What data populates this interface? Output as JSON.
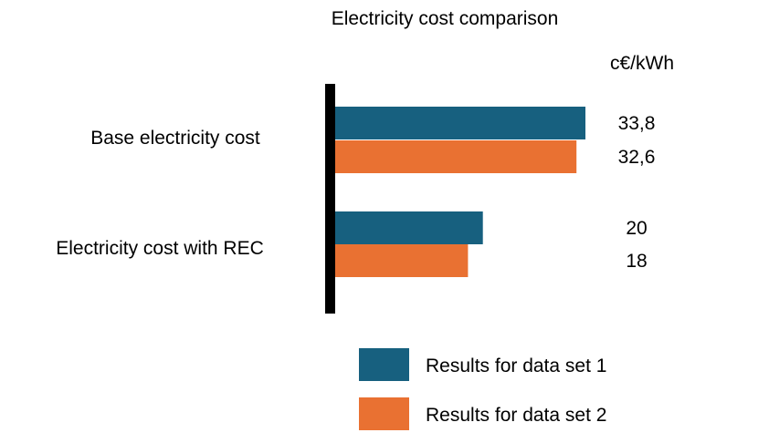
{
  "chart_data": {
    "type": "bar",
    "orientation": "horizontal",
    "title": "Electricity cost comparison",
    "unit": "c€/kWh",
    "categories": [
      "Base electricity cost",
      "Electricity cost with REC"
    ],
    "series": [
      {
        "name": "Results for data set 1",
        "values": [
          33.8,
          20
        ],
        "labels": [
          "33,8",
          "20"
        ],
        "color": "#17607f"
      },
      {
        "name": "Results for data set 2",
        "values": [
          32.6,
          18
        ],
        "labels": [
          "32,6",
          "18"
        ],
        "color": "#e97132"
      }
    ],
    "xlim": [
      0,
      40
    ],
    "grid": false,
    "axis_line_color": "#000000",
    "legend_position": "bottom"
  }
}
